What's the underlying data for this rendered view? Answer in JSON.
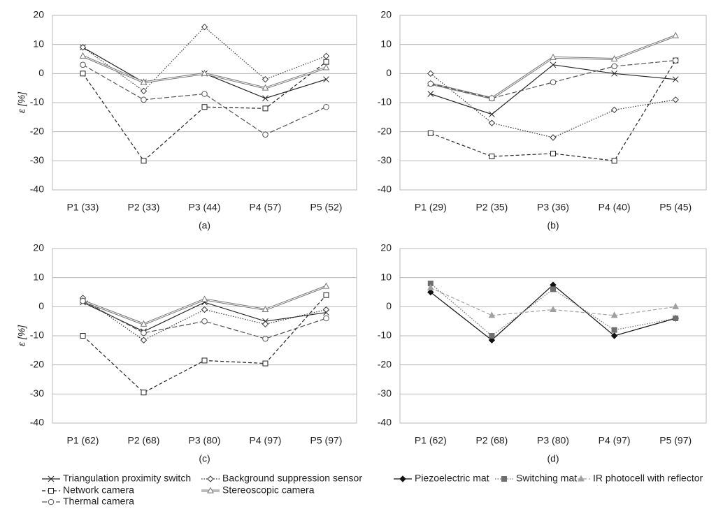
{
  "chart_data": [
    {
      "type": "line",
      "ylabel": "ε [%]",
      "caption": "(a)",
      "categories": [
        "P1 (33)",
        "P2 (33)",
        "P3 (44)",
        "P4 (57)",
        "P5 (52)"
      ],
      "ylim": [
        -40,
        20
      ],
      "yticks": [
        -40,
        -30,
        -20,
        -10,
        0,
        10,
        20
      ],
      "grid": true,
      "series": [
        {
          "name": "Triangulation proximity switch",
          "color": "#222222",
          "dash": "solid",
          "marker": "cross",
          "values": [
            9,
            -3,
            0,
            -8.5,
            -2
          ]
        },
        {
          "name": "Background suppression sensor",
          "color": "#333333",
          "dash": "dotted",
          "marker": "diamond-open",
          "values": [
            9,
            -6,
            16,
            -2,
            6
          ]
        },
        {
          "name": "Network camera",
          "color": "#222222",
          "dash": "dashed",
          "marker": "square-open",
          "values": [
            0,
            -30,
            -11.5,
            -12,
            4
          ]
        },
        {
          "name": "Stereoscopic camera",
          "color": "#777777",
          "dash": "double",
          "marker": "triangle-open",
          "values": [
            6,
            -3,
            0,
            -5,
            2
          ]
        },
        {
          "name": "Thermal camera",
          "color": "#555555",
          "dash": "longdash",
          "marker": "circle-open",
          "values": [
            3,
            -9,
            -7,
            -21,
            -11.5
          ]
        }
      ]
    },
    {
      "type": "line",
      "caption": "(b)",
      "categories": [
        "P1 (29)",
        "P2 (35)",
        "P3 (36)",
        "P4 (40)",
        "P5 (45)"
      ],
      "ylim": [
        -40,
        20
      ],
      "yticks": [
        -40,
        -30,
        -20,
        -10,
        0,
        10,
        20
      ],
      "grid": true,
      "series": [
        {
          "color": "#222222",
          "dash": "solid",
          "marker": "cross",
          "values": [
            -7,
            -14,
            3,
            0,
            -2
          ]
        },
        {
          "color": "#333333",
          "dash": "dotted",
          "marker": "diamond-open",
          "values": [
            0,
            -17,
            -22,
            -12.5,
            -9
          ]
        },
        {
          "color": "#222222",
          "dash": "dashed",
          "marker": "square-open",
          "values": [
            -20.5,
            -28.5,
            -27.5,
            -30,
            4.5
          ]
        },
        {
          "color": "#777777",
          "dash": "double",
          "marker": "triangle-open",
          "values": [
            -3.5,
            -8.5,
            5.5,
            5,
            13
          ]
        },
        {
          "color": "#555555",
          "dash": "longdash",
          "marker": "circle-open",
          "values": [
            -3.5,
            -8.5,
            -3,
            2.5,
            4.5
          ]
        }
      ]
    },
    {
      "type": "line",
      "ylabel": "ε [%]",
      "caption": "(c)",
      "categories": [
        "P1 (62)",
        "P2 (68)",
        "P3 (80)",
        "P4 (97)",
        "P5 (97)"
      ],
      "ylim": [
        -40,
        20
      ],
      "yticks": [
        -40,
        -30,
        -20,
        -10,
        0,
        10,
        20
      ],
      "grid": true,
      "series": [
        {
          "color": "#222222",
          "dash": "solid",
          "marker": "cross",
          "values": [
            1.5,
            -8.5,
            1.5,
            -5,
            -2
          ]
        },
        {
          "color": "#333333",
          "dash": "dotted",
          "marker": "diamond-open",
          "values": [
            3,
            -11.5,
            -1,
            -6,
            -1
          ]
        },
        {
          "color": "#222222",
          "dash": "dashed",
          "marker": "square-open",
          "values": [
            -10,
            -29.5,
            -18.5,
            -19.5,
            4
          ]
        },
        {
          "color": "#777777",
          "dash": "double",
          "marker": "triangle-open",
          "values": [
            2,
            -6,
            2.5,
            -1,
            7
          ]
        },
        {
          "color": "#555555",
          "dash": "longdash",
          "marker": "circle-open",
          "values": [
            2,
            -9,
            -5,
            -11,
            -4
          ]
        }
      ]
    },
    {
      "type": "line",
      "caption": "(d)",
      "categories": [
        "P1 (62)",
        "P2 (68)",
        "P3 (80)",
        "P4 (97)",
        "P5 (97)"
      ],
      "ylim": [
        -40,
        20
      ],
      "yticks": [
        -40,
        -30,
        -20,
        -10,
        0,
        10,
        20
      ],
      "grid": true,
      "series": [
        {
          "name": "Piezoelectric mat",
          "color": "#111111",
          "dash": "solid",
          "marker": "diamond-filled",
          "values": [
            5,
            -11.5,
            7.5,
            -10,
            -4
          ]
        },
        {
          "name": "Switching mat",
          "color": "#6e6e6e",
          "dash": "dotted",
          "marker": "square-filled",
          "values": [
            8,
            -10,
            6,
            -8,
            -4
          ]
        },
        {
          "name": "IR photocell with reflector",
          "color": "#a0a0a0",
          "dash": "dashed",
          "marker": "triangle-filled",
          "values": [
            6.5,
            -3,
            -1,
            -3,
            0
          ]
        }
      ]
    }
  ]
}
